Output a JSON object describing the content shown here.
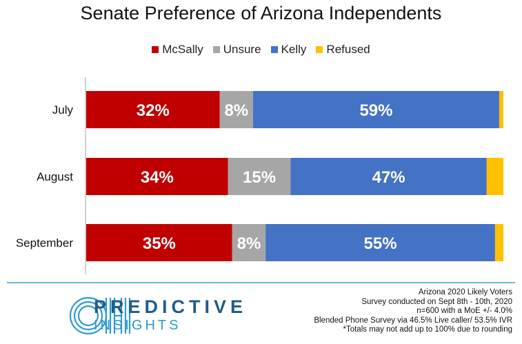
{
  "chart_data": {
    "type": "bar",
    "orientation": "horizontal",
    "stacked": true,
    "title": "Senate Preference  of Arizona Independents",
    "categories": [
      "July",
      "August",
      "September"
    ],
    "series": [
      {
        "name": "McSally",
        "color": "#c00000",
        "values": [
          32,
          34,
          35
        ],
        "labels": [
          "32%",
          "34%",
          "35%"
        ]
      },
      {
        "name": "Unsure",
        "color": "#a6a6a6",
        "values": [
          8,
          15,
          8
        ],
        "labels": [
          "8%",
          "15%",
          "8%"
        ]
      },
      {
        "name": "Kelly",
        "color": "#4472c4",
        "values": [
          59,
          47,
          55
        ],
        "labels": [
          "59%",
          "47%",
          "55%"
        ]
      },
      {
        "name": "Refused",
        "color": "#ffc000",
        "values": [
          1,
          4,
          1
        ],
        "labels": [
          "",
          "",
          ""
        ]
      }
    ],
    "xlim": [
      0,
      100
    ],
    "legend": "top",
    "grid": false
  },
  "footer": {
    "brand_word1": "PREDICTIVE",
    "brand_word2": "INSIGHTS",
    "notes": [
      "Arizona 2020 Likely Voters",
      "Survey conducted on Sept 8th - 10th, 2020",
      "n=600 with a MoE +/- 4.0%",
      "Blended Phone Survey via 46.5% Live caller/ 53.5% IVR",
      "*Totals may not add up to 100% due to rounding"
    ]
  }
}
